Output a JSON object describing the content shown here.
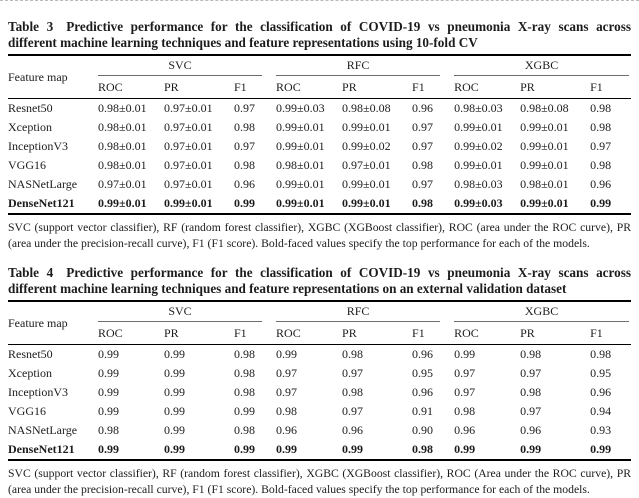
{
  "accent_colors": {
    "rule_black": "#000000",
    "spanner_gray": "#6e6e6e",
    "text": "#1c1c1c",
    "background": "#ffffff"
  },
  "table3": {
    "title_label": "Table 3",
    "title": "Predictive performance for the classification of COVID-19 vs pneumonia X-ray scans across different machine learning techniques and feature representations using 10-fold CV",
    "feature_col": "Feature map",
    "groups": [
      "SVC",
      "RFC",
      "XGBC"
    ],
    "subheaders": [
      "ROC",
      "PR",
      "F1"
    ],
    "rows": [
      {
        "feature": "Resnet50",
        "bold": false,
        "values": [
          "0.98±0.01",
          "0.97±0.01",
          "0.97",
          "0.99±0.03",
          "0.98±0.08",
          "0.96",
          "0.98±0.03",
          "0.98±0.08",
          "0.98"
        ]
      },
      {
        "feature": "Xception",
        "bold": false,
        "values": [
          "0.98±0.01",
          "0.97±0.01",
          "0.98",
          "0.99±0.01",
          "0.99±0.01",
          "0.97",
          "0.99±0.01",
          "0.99±0.01",
          "0.98"
        ]
      },
      {
        "feature": "InceptionV3",
        "bold": false,
        "values": [
          "0.98±0.01",
          "0.97±0.01",
          "0.97",
          "0.99±0.01",
          "0.99±0.02",
          "0.97",
          "0.99±0.02",
          "0.99±0.01",
          "0.97"
        ]
      },
      {
        "feature": "VGG16",
        "bold": false,
        "values": [
          "0.98±0.01",
          "0.97±0.01",
          "0.98",
          "0.98±0.01",
          "0.97±0.01",
          "0.98",
          "0.99±0.01",
          "0.99±0.01",
          "0.98"
        ]
      },
      {
        "feature": "NASNetLarge",
        "bold": false,
        "values": [
          "0.97±0.01",
          "0.97±0.01",
          "0.96",
          "0.99±0.01",
          "0.99±0.01",
          "0.97",
          "0.98±0.03",
          "0.98±0.01",
          "0.96"
        ]
      },
      {
        "feature": "DenseNet121",
        "bold": true,
        "values": [
          "0.99±0.01",
          "0.99±0.01",
          "0.99",
          "0.99±0.01",
          "0.99±0.01",
          "0.98",
          "0.99±0.03",
          "0.99±0.01",
          "0.99"
        ]
      }
    ],
    "footnote": "SVC (support vector classifier), RF (random forest classifier), XGBC (XGBoost classifier), ROC (area under the ROC curve), PR (area under the precision-recall curve), F1 (F1 score). Bold-faced values specify the top performance for each of the models."
  },
  "table4": {
    "title_label": "Table 4",
    "title": "Predictive performance for the classification of COVID-19 vs pneumonia X-ray scans across different machine learning techniques and feature representations on an external validation dataset",
    "feature_col": "Feature map",
    "groups": [
      "SVC",
      "RFC",
      "XGBC"
    ],
    "subheaders": [
      "ROC",
      "PR",
      "F1"
    ],
    "rows": [
      {
        "feature": "Resnet50",
        "bold": false,
        "values": [
          "0.99",
          "0.99",
          "0.98",
          "0.99",
          "0.98",
          "0.96",
          "0.99",
          "0.98",
          "0.98"
        ]
      },
      {
        "feature": "Xception",
        "bold": false,
        "values": [
          "0.99",
          "0.99",
          "0.98",
          "0.97",
          "0.97",
          "0.95",
          "0.97",
          "0.97",
          "0.95"
        ]
      },
      {
        "feature": "InceptionV3",
        "bold": false,
        "values": [
          "0.99",
          "0.99",
          "0.98",
          "0.97",
          "0.98",
          "0.96",
          "0.97",
          "0.98",
          "0.96"
        ]
      },
      {
        "feature": "VGG16",
        "bold": false,
        "values": [
          "0.99",
          "0.99",
          "0.99",
          "0.98",
          "0.97",
          "0.91",
          "0.98",
          "0.97",
          "0.94"
        ]
      },
      {
        "feature": "NASNetLarge",
        "bold": false,
        "values": [
          "0.98",
          "0.99",
          "0.98",
          "0.96",
          "0.96",
          "0.90",
          "0.96",
          "0.96",
          "0.93"
        ]
      },
      {
        "feature": "DenseNet121",
        "bold": true,
        "values": [
          "0.99",
          "0.99",
          "0.99",
          "0.99",
          "0.99",
          "0.98",
          "0.99",
          "0.99",
          "0.99"
        ]
      }
    ],
    "footnote": "SVC (support vector classifier), RF (random forest classifier), XGBC (XGBoost classifier), ROC (Area under the ROC curve), PR (area under the precision-recall curve), F1 (F1 score). Bold-faced values specify the top performance for each of the models."
  }
}
